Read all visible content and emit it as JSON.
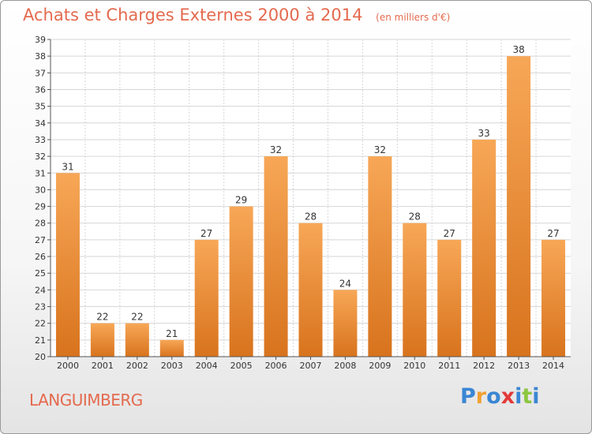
{
  "header": {
    "title": "Achats et Charges Externes 2000 à 2014",
    "subtitle": "(en milliers d'€)"
  },
  "footer": {
    "commune": "LANGUIMBERG",
    "logo_text": "Proxiti",
    "logo_letters": [
      {
        "char": "P",
        "color": "#3a86d4"
      },
      {
        "char": "r",
        "color": "#f0a030"
      },
      {
        "char": "o",
        "color": "#3a86d4"
      },
      {
        "char": "x",
        "color": "#e23a3a"
      },
      {
        "char": "i",
        "color": "#3a86d4"
      },
      {
        "char": "t",
        "color": "#8cc63f"
      },
      {
        "char": "i",
        "color": "#3a86d4"
      }
    ]
  },
  "colors": {
    "title": "#e46a4e",
    "bar_top": "#f7a757",
    "bar_bottom": "#d8731d",
    "grid": "#d6d6d6",
    "axis": "#555555"
  },
  "chart_data": {
    "type": "bar",
    "categories": [
      "2000",
      "2001",
      "2002",
      "2003",
      "2004",
      "2005",
      "2006",
      "2007",
      "2008",
      "2009",
      "2010",
      "2011",
      "2012",
      "2013",
      "2014"
    ],
    "values": [
      31,
      22,
      22,
      21,
      27,
      29,
      32,
      28,
      24,
      32,
      28,
      27,
      33,
      38,
      27
    ],
    "title": "Achats et Charges Externes 2000 à 2014",
    "subtitle": "(en milliers d'€)",
    "xlabel": "",
    "ylabel": "",
    "ylim": [
      20,
      39
    ],
    "yticks": [
      20,
      21,
      22,
      23,
      24,
      25,
      26,
      27,
      28,
      29,
      30,
      31,
      32,
      33,
      34,
      35,
      36,
      37,
      38,
      39
    ],
    "grid": true,
    "legend": "none"
  }
}
